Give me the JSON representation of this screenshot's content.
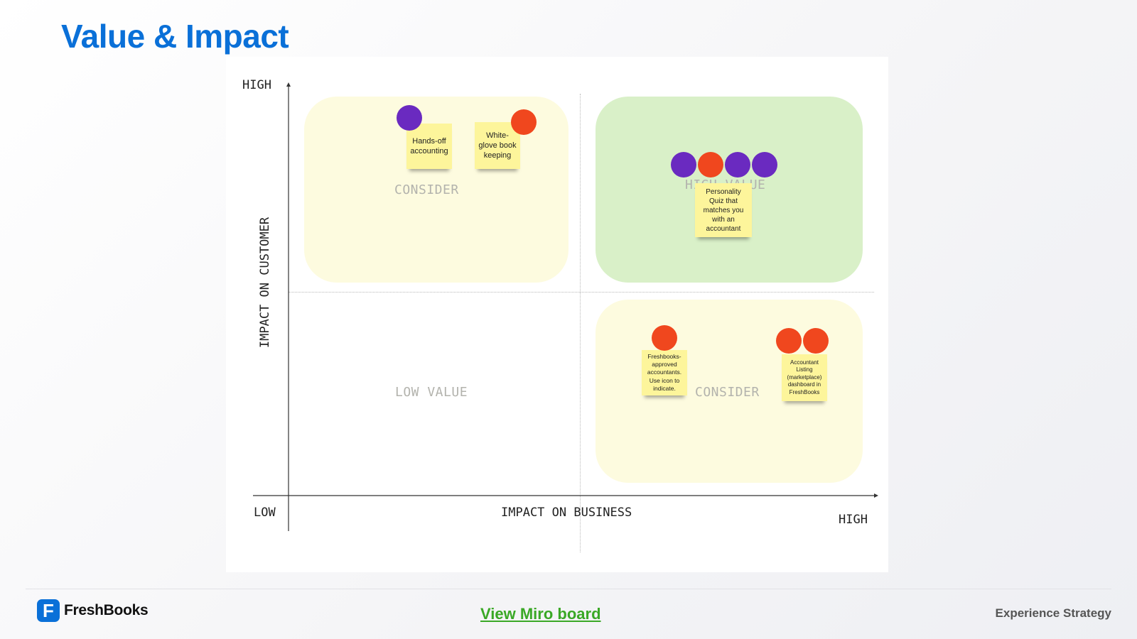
{
  "slide": {
    "title": "Value & Impact"
  },
  "matrix": {
    "y_axis": {
      "high": "HIGH",
      "label": "IMPACT ON CUSTOMER"
    },
    "x_axis": {
      "low": "LOW",
      "label": "IMPACT ON BUSINESS",
      "high": "HIGH"
    },
    "quadrants": {
      "top_left": {
        "label": "CONSIDER",
        "color": "#fdfbdf"
      },
      "top_right": {
        "label": "HIGH VALUE",
        "color": "#d9f0c8"
      },
      "bottom_left": {
        "label": "LOW VALUE"
      },
      "bottom_right": {
        "label": "CONSIDER",
        "color": "#fdfbdf"
      }
    },
    "stickies": [
      {
        "text": "Hands-off accounting",
        "votes": [
          "purple"
        ]
      },
      {
        "text": "White-glove book keeping",
        "votes": [
          "red"
        ]
      },
      {
        "text": "Personality Quiz that matches you with an accountant",
        "votes": [
          "purple",
          "red",
          "purple",
          "purple"
        ]
      },
      {
        "text": "Freshbooks-approved accountants. Use icon to indicate.",
        "votes": [
          "red"
        ]
      },
      {
        "text": "Accountant Listing (marketplace) dashboard in FreshBooks",
        "votes": [
          "red",
          "red"
        ]
      }
    ],
    "colors": {
      "sticky": "#fdf59b",
      "vote_purple": "#6a2ac0",
      "vote_red": "#f0471e"
    }
  },
  "footer": {
    "brand": "FreshBooks",
    "logo_letter": "F",
    "link": "View Miro board",
    "right_text": "Experience Strategy"
  }
}
